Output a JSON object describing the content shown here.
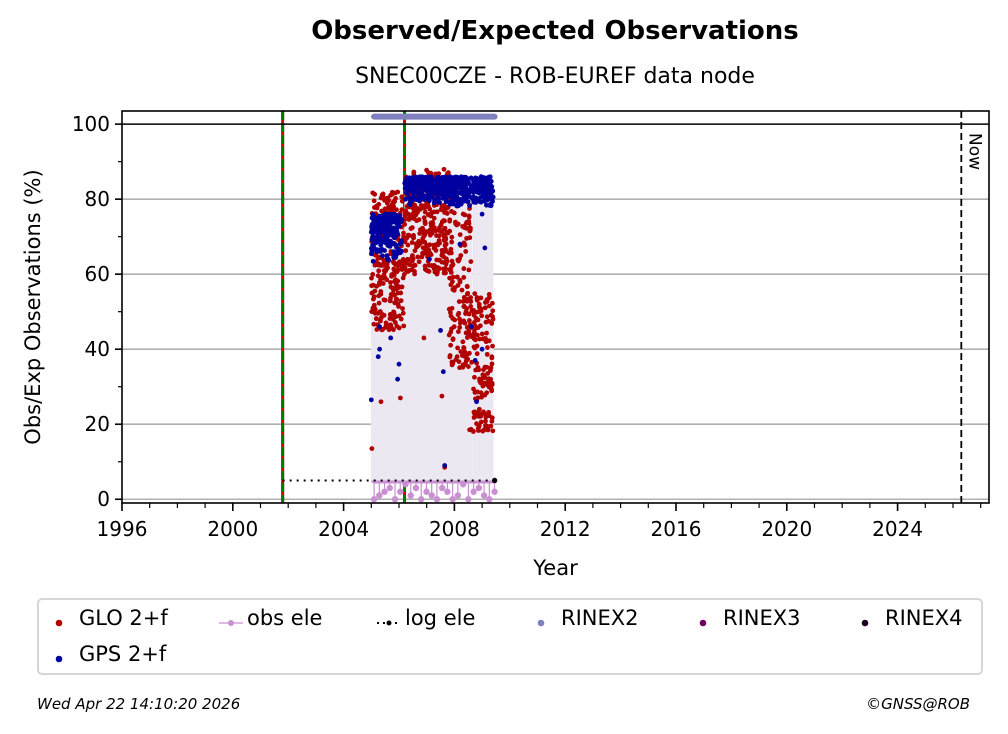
{
  "chart_data": {
    "type": "scatter",
    "title": "Observed/Expected Observations",
    "subtitle": "SNEC00CZE - ROB-EUREF data node",
    "xlabel": "Year",
    "ylabel": "Obs/Exp Observations (%)",
    "xlim": [
      1996,
      2027.3
    ],
    "ylim": [
      -1,
      103.5
    ],
    "xticks": [
      1996,
      2000,
      2004,
      2008,
      2012,
      2016,
      2020,
      2024
    ],
    "xtick_labels": [
      "1996",
      "2000",
      "2004",
      "2008",
      "2012",
      "2016",
      "2020",
      "2024"
    ],
    "yticks": [
      0,
      20,
      40,
      60,
      80,
      100
    ],
    "ytick_labels": [
      "0",
      "20",
      "40",
      "60",
      "80",
      "100"
    ],
    "grid": "y-major",
    "legend_placement": "bottom",
    "now_label": "Now",
    "now_year": 2026.3,
    "reference_lines": [
      {
        "name": "equipment-change",
        "x": 2001.8
      },
      {
        "name": "equipment-change",
        "x": 2006.2
      }
    ],
    "hline_100": 100,
    "log_ele": {
      "x_start": 2001.8,
      "x_end": 2009.45,
      "y": 5
    },
    "rinex2": {
      "x_start": 2005.1,
      "x_end": 2009.45,
      "y": 102
    },
    "series": [
      {
        "name": "GLO 2+f",
        "color": "#b00000",
        "clusters": [
          {
            "x0": 2005.0,
            "x1": 2006.2,
            "y_min": 45,
            "y_max": 82,
            "count": 260
          },
          {
            "x0": 2006.2,
            "x1": 2007.8,
            "y_min": 60,
            "y_max": 88,
            "count": 300
          },
          {
            "x0": 2007.8,
            "x1": 2008.6,
            "y_min": 35,
            "y_max": 85,
            "count": 160
          },
          {
            "x0": 2008.6,
            "x1": 2009.4,
            "y_min": 18,
            "y_max": 55,
            "count": 150
          }
        ],
        "points": [
          {
            "x": 2005.02,
            "y": 13.5
          },
          {
            "x": 2005.35,
            "y": 26
          },
          {
            "x": 2006.05,
            "y": 27
          },
          {
            "x": 2007.55,
            "y": 27.5
          },
          {
            "x": 2007.65,
            "y": 8.5
          },
          {
            "x": 2008.55,
            "y": 18.5
          },
          {
            "x": 2008.1,
            "y": 38
          },
          {
            "x": 2008.9,
            "y": 24
          },
          {
            "x": 2006.9,
            "y": 43
          }
        ]
      },
      {
        "name": "GPS 2+f",
        "color": "#0000a0",
        "clusters": [
          {
            "x0": 2005.0,
            "x1": 2006.1,
            "y_min": 63,
            "y_max": 76,
            "count": 220
          },
          {
            "x0": 2006.2,
            "x1": 2009.4,
            "y_min": 78,
            "y_max": 86,
            "count": 520
          }
        ],
        "points": [
          {
            "x": 2005.0,
            "y": 26.5
          },
          {
            "x": 2005.25,
            "y": 38
          },
          {
            "x": 2005.3,
            "y": 40
          },
          {
            "x": 2005.3,
            "y": 46
          },
          {
            "x": 2005.7,
            "y": 43
          },
          {
            "x": 2005.95,
            "y": 32
          },
          {
            "x": 2006.0,
            "y": 36
          },
          {
            "x": 2007.65,
            "y": 9
          },
          {
            "x": 2007.1,
            "y": 64
          },
          {
            "x": 2007.5,
            "y": 45
          },
          {
            "x": 2008.6,
            "y": 46
          },
          {
            "x": 2008.75,
            "y": 37
          },
          {
            "x": 2009.0,
            "y": 40
          },
          {
            "x": 2009.1,
            "y": 67
          },
          {
            "x": 2009.3,
            "y": 81
          },
          {
            "x": 2009.0,
            "y": 76
          },
          {
            "x": 2008.2,
            "y": 68
          },
          {
            "x": 2007.6,
            "y": 34
          },
          {
            "x": 2008.8,
            "y": 26
          }
        ]
      },
      {
        "name": "obs ele",
        "color": "#c890d0",
        "x_start": 2005.1,
        "x_end": 2009.45,
        "y_top": 5,
        "stem_values": [
          0,
          1,
          2,
          3,
          0,
          2,
          4,
          1,
          3,
          0,
          2,
          1,
          0,
          3,
          2,
          0,
          1,
          4,
          0,
          2,
          3,
          1,
          0,
          2
        ]
      },
      {
        "name": "log ele",
        "color": "#000000"
      },
      {
        "name": "RINEX2",
        "color": "#8080c0"
      },
      {
        "name": "RINEX3",
        "color": "#700060"
      },
      {
        "name": "RINEX4",
        "color": "#200020"
      }
    ]
  },
  "legend": {
    "items": [
      {
        "label": "GLO 2+f",
        "color": "#b00000",
        "style": "dot"
      },
      {
        "label": "obs ele",
        "color": "#c890d0",
        "style": "line-dot"
      },
      {
        "label": "log ele",
        "color": "#000000",
        "style": "dotted-dot"
      },
      {
        "label": "RINEX2",
        "color": "#8080c0",
        "style": "dot"
      },
      {
        "label": "RINEX3",
        "color": "#700060",
        "style": "dot"
      },
      {
        "label": "RINEX4",
        "color": "#200020",
        "style": "dot"
      },
      {
        "label": "GPS 2+f",
        "color": "#0000a0",
        "style": "dot"
      }
    ]
  },
  "footer": {
    "timestamp": "Wed Apr 22 14:10:20 2026",
    "copyright": "©GNSS@ROB"
  }
}
